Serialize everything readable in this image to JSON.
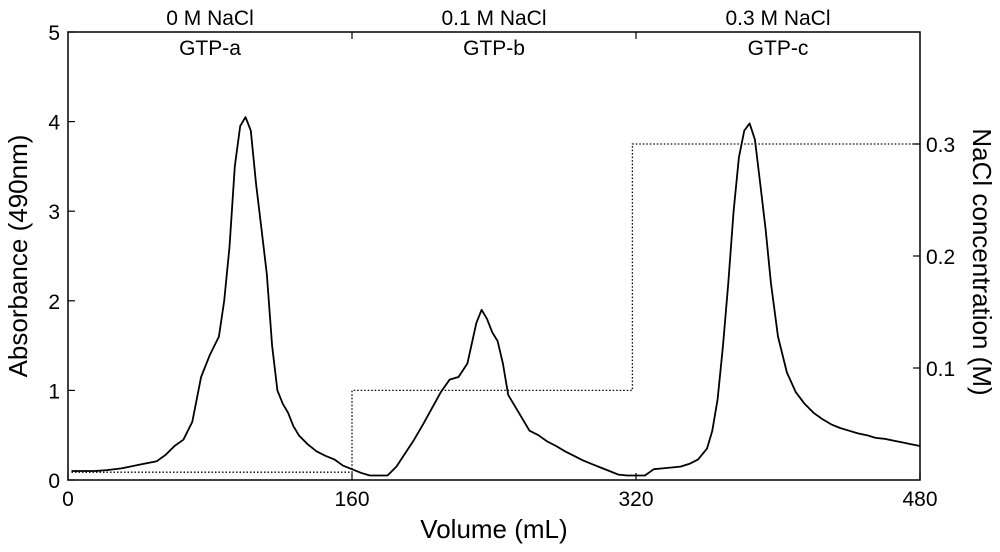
{
  "chart_data": {
    "type": "line",
    "title": "",
    "xlabel": "Volume (mL)",
    "ylabel": "Absorbance (490nm)",
    "y2label": "NaCl concentration (M)",
    "xlim": [
      0,
      480
    ],
    "ylim": [
      0,
      5
    ],
    "y2lim": [
      0,
      0.4
    ],
    "x_ticks": [
      0,
      160,
      320,
      480
    ],
    "y_ticks": [
      0,
      1,
      2,
      3,
      4,
      5
    ],
    "y2_ticks": [
      0.1,
      0.2,
      0.3
    ],
    "grid": false,
    "series": [
      {
        "axis": "left",
        "style": "solid",
        "x": [
          2,
          8,
          15,
          22,
          30,
          40,
          50,
          55,
          60,
          65,
          70,
          75,
          80,
          85,
          88,
          91,
          94,
          97,
          100,
          103,
          106,
          109,
          112,
          115,
          118,
          121,
          124,
          127,
          130,
          135,
          140,
          145,
          150,
          155,
          160,
          165,
          170,
          175,
          180,
          185,
          190,
          195,
          200,
          205,
          210,
          215,
          220,
          225,
          230,
          233,
          236,
          239,
          242,
          245,
          248,
          251,
          254,
          257,
          260,
          265,
          270,
          275,
          280,
          285,
          290,
          295,
          300,
          305,
          310,
          315,
          320,
          325,
          330,
          335,
          340,
          345,
          350,
          355,
          360,
          363,
          366,
          369,
          372,
          375,
          378,
          381,
          384,
          387,
          390,
          393,
          396,
          400,
          405,
          410,
          415,
          420,
          425,
          430,
          435,
          440,
          445,
          450,
          455,
          460,
          465,
          470,
          475,
          480
        ],
        "y": [
          0.1,
          0.1,
          0.1,
          0.11,
          0.13,
          0.17,
          0.21,
          0.28,
          0.38,
          0.45,
          0.65,
          1.15,
          1.4,
          1.6,
          2.0,
          2.6,
          3.5,
          3.95,
          4.05,
          3.9,
          3.3,
          2.8,
          2.3,
          1.5,
          1.0,
          0.85,
          0.75,
          0.6,
          0.5,
          0.4,
          0.32,
          0.27,
          0.23,
          0.16,
          0.12,
          0.08,
          0.05,
          0.05,
          0.05,
          0.15,
          0.3,
          0.45,
          0.62,
          0.8,
          0.98,
          1.12,
          1.15,
          1.3,
          1.75,
          1.9,
          1.8,
          1.65,
          1.55,
          1.3,
          0.95,
          0.85,
          0.75,
          0.65,
          0.55,
          0.5,
          0.43,
          0.38,
          0.32,
          0.27,
          0.22,
          0.18,
          0.14,
          0.1,
          0.06,
          0.05,
          0.05,
          0.05,
          0.12,
          0.13,
          0.14,
          0.15,
          0.18,
          0.23,
          0.35,
          0.55,
          0.9,
          1.5,
          2.2,
          3.0,
          3.6,
          3.9,
          3.98,
          3.8,
          3.3,
          2.8,
          2.2,
          1.6,
          1.2,
          0.98,
          0.85,
          0.75,
          0.68,
          0.62,
          0.58,
          0.55,
          0.52,
          0.5,
          0.47,
          0.46,
          0.44,
          0.42,
          0.4,
          0.38
        ]
      },
      {
        "axis": "right",
        "style": "dotted",
        "x": [
          2,
          160,
          160,
          318,
          318,
          480
        ],
        "y": [
          0.007,
          0.007,
          0.08,
          0.08,
          0.3,
          0.3
        ]
      }
    ],
    "segments": [
      {
        "salt": "0 M NaCl",
        "fraction": "GTP-a",
        "x_start": 0,
        "x_end": 160
      },
      {
        "salt": "0.1 M NaCl",
        "fraction": "GTP-b",
        "x_start": 160,
        "x_end": 320
      },
      {
        "salt": "0.3 M NaCl",
        "fraction": "GTP-c",
        "x_start": 320,
        "x_end": 480
      }
    ]
  }
}
